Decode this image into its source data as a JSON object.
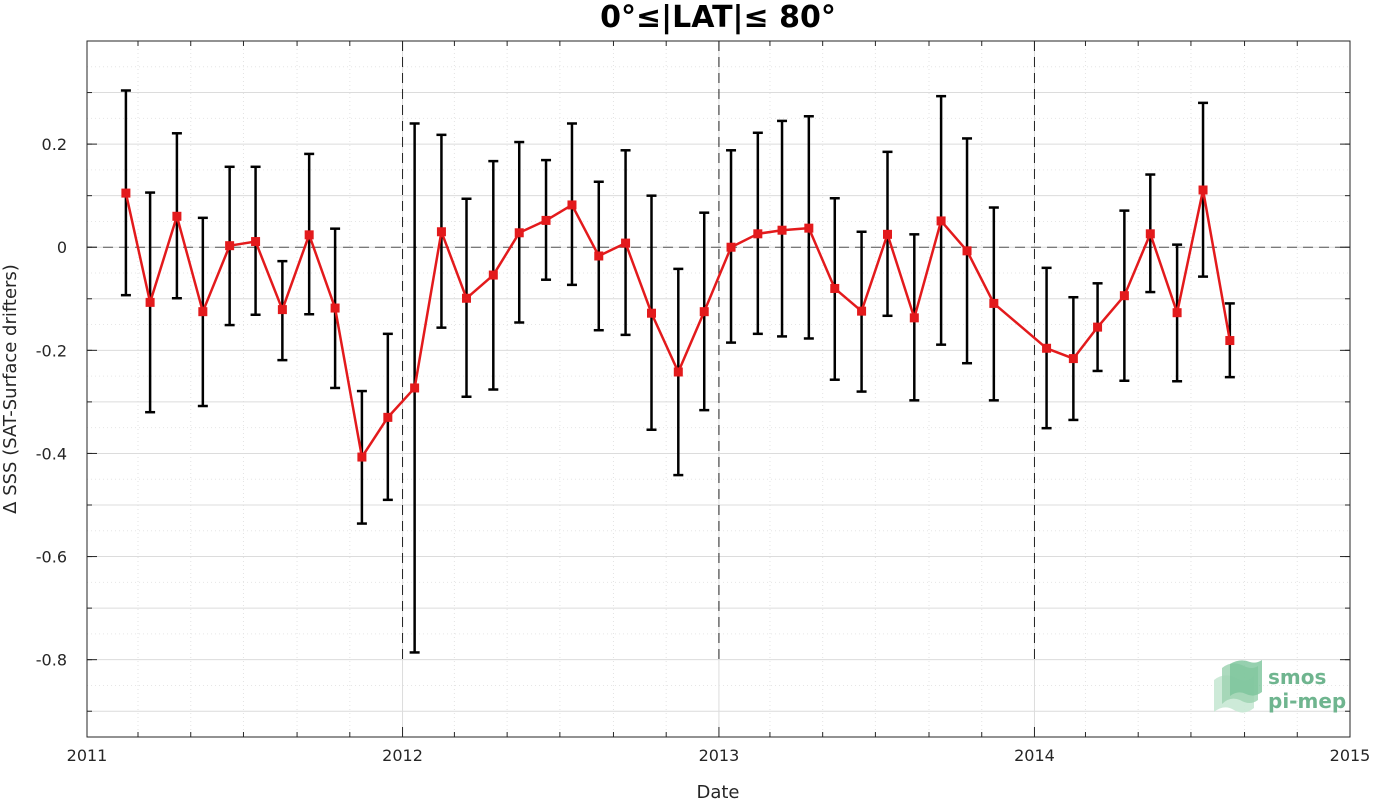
{
  "chart_data": {
    "type": "line",
    "title": "0°≤|LAT|≤ 80°",
    "xlabel": "Date",
    "ylabel": "Δ SSS (SAT-Surface drifters)",
    "xlim": [
      "2011-01-01",
      "2015-01-01"
    ],
    "ylim": [
      -0.95,
      0.4
    ],
    "xtick_labels": [
      "2011",
      "2012",
      "2013",
      "2014",
      "2015"
    ],
    "ytick_values": [
      0.2,
      0,
      -0.2,
      -0.4,
      -0.6,
      -0.8
    ],
    "ytick_labels": [
      "0.2",
      "0",
      "-0.2",
      "-0.4",
      "-0.6",
      "-0.8"
    ],
    "grid": true,
    "zero_reference_line": 0,
    "year_separator_dates": [
      "2012-01-01",
      "2013-01-01",
      "2014-01-01"
    ],
    "series_color": "#e31a1c",
    "errorbar_color": "#000000",
    "series": [
      {
        "x": [
          "2011-02-15",
          "2011-03-15",
          "2011-04-15",
          "2011-05-15",
          "2011-06-15",
          "2011-07-15",
          "2011-08-15",
          "2011-09-15",
          "2011-10-15",
          "2011-11-15",
          "2011-12-15",
          "2012-01-15",
          "2012-02-15",
          "2012-03-15",
          "2012-04-15",
          "2012-05-15",
          "2012-06-15",
          "2012-07-15",
          "2012-08-15",
          "2012-09-15",
          "2012-10-15",
          "2012-11-15",
          "2012-12-15",
          "2013-01-15",
          "2013-02-15",
          "2013-03-15",
          "2013-04-15",
          "2013-05-15",
          "2013-06-15",
          "2013-07-15",
          "2013-08-15",
          "2013-09-15",
          "2013-10-15",
          "2013-11-15",
          "2014-01-15",
          "2014-02-15",
          "2014-03-15",
          "2014-04-15",
          "2014-05-15",
          "2014-06-15",
          "2014-07-15",
          "2014-08-15"
        ],
        "values": [
          0.105,
          -0.107,
          0.06,
          -0.125,
          0.003,
          0.011,
          -0.121,
          0.024,
          -0.118,
          -0.407,
          -0.33,
          -0.273,
          0.03,
          -0.099,
          -0.054,
          0.028,
          0.052,
          0.082,
          -0.017,
          0.008,
          -0.128,
          -0.242,
          -0.125,
          0.0,
          0.026,
          0.033,
          0.037,
          -0.08,
          -0.124,
          0.025,
          -0.137,
          0.051,
          -0.007,
          -0.109,
          -0.196,
          -0.216,
          -0.155,
          -0.094,
          0.026,
          -0.127,
          0.111,
          -0.181
        ],
        "err_low": [
          -0.093,
          -0.32,
          -0.099,
          -0.308,
          -0.151,
          -0.131,
          -0.219,
          -0.13,
          -0.273,
          -0.536,
          -0.49,
          -0.786,
          -0.156,
          -0.29,
          -0.276,
          -0.146,
          -0.063,
          -0.073,
          -0.161,
          -0.17,
          -0.354,
          -0.442,
          -0.316,
          -0.185,
          -0.168,
          -0.173,
          -0.177,
          -0.257,
          -0.28,
          -0.133,
          -0.297,
          -0.189,
          -0.225,
          -0.297,
          -0.351,
          -0.335,
          -0.24,
          -0.259,
          -0.087,
          -0.26,
          -0.057,
          -0.252
        ],
        "err_high": [
          0.304,
          0.106,
          0.221,
          0.057,
          0.156,
          0.156,
          -0.027,
          0.181,
          0.036,
          -0.279,
          -0.168,
          0.24,
          0.218,
          0.094,
          0.167,
          0.204,
          0.169,
          0.24,
          0.127,
          0.188,
          0.1,
          -0.042,
          0.067,
          0.188,
          0.222,
          0.245,
          0.254,
          0.095,
          0.03,
          0.185,
          0.025,
          0.293,
          0.211,
          0.077,
          -0.04,
          -0.097,
          -0.07,
          0.071,
          0.141,
          0.005,
          0.28,
          -0.109
        ]
      }
    ]
  },
  "logo": {
    "line1": "smos",
    "line2": "pi-mep",
    "color": "#6fb58f",
    "shape_color": "#a9d9bd"
  }
}
